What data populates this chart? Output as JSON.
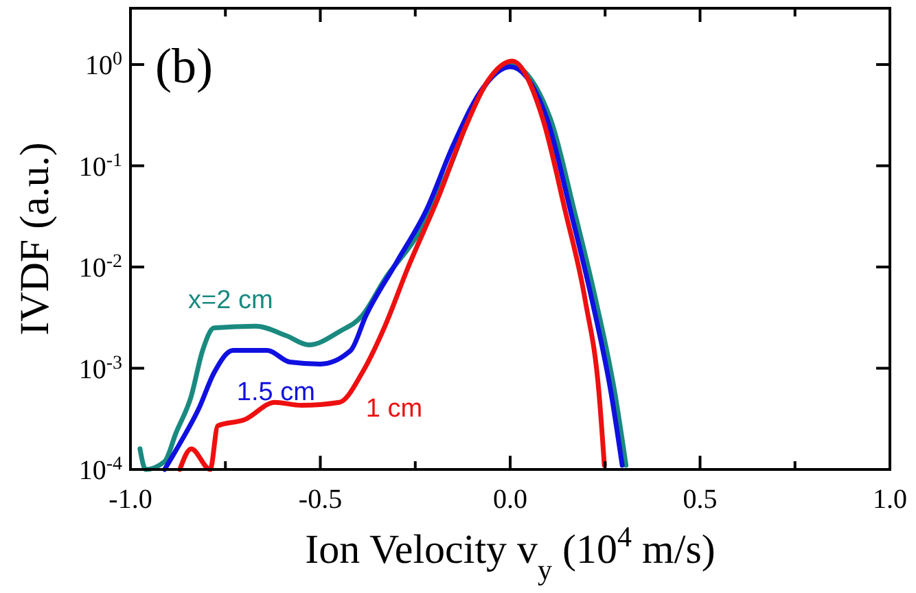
{
  "chart_data": {
    "type": "line",
    "log": "y",
    "xlabel": "Ion Velocity v$_{y}$ (10$^{4}$ m/s)",
    "ylabel": "IVDF (a.u.)",
    "annotations": [
      "(b)"
    ],
    "xlim": [
      -1,
      1
    ],
    "ylim": [
      0.0001,
      3.6
    ],
    "xticks": [
      {
        "value": -1,
        "label": "-1.0"
      },
      {
        "value": -0.75,
        "label": null
      },
      {
        "value": -0.5,
        "label": "-0.5"
      },
      {
        "value": -0.25,
        "label": null
      },
      {
        "value": 0,
        "label": "0.0"
      },
      {
        "value": 0.25,
        "label": null
      },
      {
        "value": 0.5,
        "label": "0.5"
      },
      {
        "value": 0.75,
        "label": null
      },
      {
        "value": 1,
        "label": "1.0"
      }
    ],
    "yticks": [
      {
        "value": 0.0001,
        "label": "10$^{-4}$"
      },
      {
        "value": 0.001,
        "label": "10$^{-3}$"
      },
      {
        "value": 0.01,
        "label": "10$^{-2}$"
      },
      {
        "value": 0.1,
        "label": "10$^{-1}$"
      },
      {
        "value": 1,
        "label": "10$^{0}$"
      }
    ],
    "grid": false,
    "legend": false,
    "line_style": "solid",
    "marker": "none",
    "series": [
      {
        "name": "x=2 cm",
        "color": "#1a8a80",
        "x": [
          -0.975,
          -0.96,
          -0.91,
          -0.88,
          -0.84,
          -0.81,
          -0.78,
          -0.67,
          -0.59,
          -0.53,
          -0.45,
          -0.39,
          -0.33,
          -0.24,
          -0.16,
          -0.085,
          0,
          0.106,
          0.168,
          0.226,
          0.276,
          0.305
        ],
        "values": [
          0.00016,
          0.0001,
          0.00012,
          0.00023,
          0.00053,
          0.0015,
          0.0025,
          0.0026,
          0.0021,
          0.0017,
          0.0023,
          0.0033,
          0.0076,
          0.022,
          0.095,
          0.47,
          1.0,
          0.29,
          0.037,
          0.0046,
          0.00056,
          0.00011
        ]
      },
      {
        "name": "1.5 cm",
        "color": "#1010e0",
        "x": [
          -0.91,
          -0.87,
          -0.82,
          -0.78,
          -0.73,
          -0.64,
          -0.58,
          -0.5,
          -0.42,
          -0.38,
          -0.3,
          -0.22,
          -0.15,
          -0.07,
          0,
          0.097,
          0.158,
          0.216,
          0.266,
          0.295
        ],
        "values": [
          0.0001,
          0.00018,
          0.0004,
          0.0009,
          0.0015,
          0.0015,
          0.00115,
          0.0011,
          0.0015,
          0.0033,
          0.011,
          0.037,
          0.16,
          0.6,
          0.95,
          0.29,
          0.037,
          0.0046,
          0.00056,
          0.00011
        ]
      },
      {
        "name": "1 cm",
        "color": "#ee1010",
        "x": [
          -0.87,
          -0.84,
          -0.79,
          -0.77,
          -0.7,
          -0.62,
          -0.55,
          -0.45,
          -0.39,
          -0.33,
          -0.27,
          -0.19,
          -0.12,
          -0.06,
          0.005,
          0.086,
          0.144,
          0.198,
          0.234,
          0.248
        ],
        "values": [
          0.0001,
          0.00016,
          0.0001,
          0.00027,
          0.00031,
          0.00046,
          0.00043,
          0.00046,
          0.0009,
          0.0026,
          0.0097,
          0.048,
          0.23,
          0.68,
          1.08,
          0.29,
          0.037,
          0.0046,
          0.00056,
          0.00011
        ]
      }
    ]
  }
}
